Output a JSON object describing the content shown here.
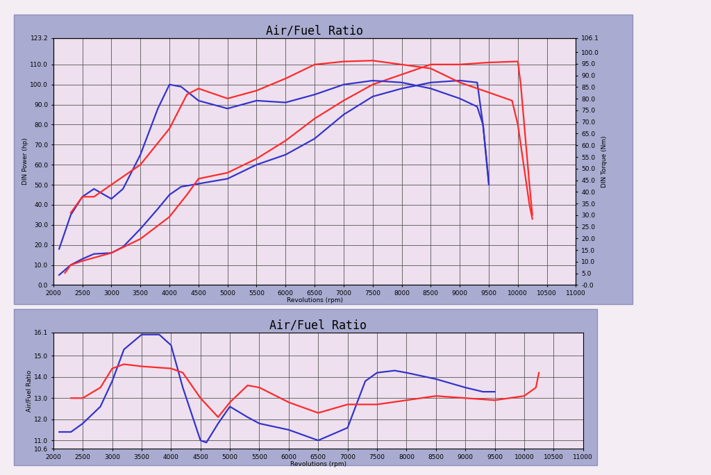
{
  "chart_data": [
    {
      "type": "line",
      "title": "Air/Fuel Ratio",
      "x_label": "Revolutions (rpm)",
      "y_label": "DIN Power (hp)",
      "y2_label": "DIN Torque (Nm)",
      "xlim": [
        2000,
        11000
      ],
      "xticks": [
        2000,
        2500,
        3000,
        3500,
        4000,
        4500,
        5000,
        5500,
        6000,
        6500,
        7000,
        7500,
        8000,
        8500,
        9000,
        9500,
        10000,
        10500,
        11000
      ],
      "ylim": [
        0,
        123.2
      ],
      "yticks": [
        {
          "value": 0,
          "label": "0.0"
        },
        {
          "value": 10,
          "label": "10.0"
        },
        {
          "value": 20,
          "label": "20.0"
        },
        {
          "value": 30,
          "label": "30.0"
        },
        {
          "value": 40,
          "label": "40.0"
        },
        {
          "value": 50,
          "label": "50.0"
        },
        {
          "value": 60,
          "label": "60.0"
        },
        {
          "value": 70,
          "label": "70.0"
        },
        {
          "value": 80,
          "label": "80.0"
        },
        {
          "value": 90,
          "label": "90.0"
        },
        {
          "value": 100,
          "label": "100.0"
        },
        {
          "value": 110,
          "label": "110.0"
        },
        123.2
      ],
      "y2lim": [
        0,
        106.1
      ],
      "y2ticks": [
        {
          "value": 0,
          "label": "-0.0"
        },
        {
          "value": 5,
          "label": "5.0"
        },
        {
          "value": 10,
          "label": "10.0"
        },
        {
          "value": 15,
          "label": "15.0"
        },
        {
          "value": 20,
          "label": "20.0"
        },
        {
          "value": 25,
          "label": "25.0"
        },
        {
          "value": 30,
          "label": "30.0"
        },
        {
          "value": 35,
          "label": "35.0"
        },
        {
          "value": 40,
          "label": "40.0"
        },
        {
          "value": 45,
          "label": "45.0"
        },
        {
          "value": 50,
          "label": "50.0"
        },
        {
          "value": 55,
          "label": "55.0"
        },
        {
          "value": 60,
          "label": "60.0"
        },
        {
          "value": 65,
          "label": "65.0"
        },
        {
          "value": 70,
          "label": "70.0"
        },
        {
          "value": 75,
          "label": "75.0"
        },
        {
          "value": 80,
          "label": "80.0"
        },
        {
          "value": 85,
          "label": "85.0"
        },
        {
          "value": 90,
          "label": "90.0"
        },
        {
          "value": 95,
          "label": "95.0"
        },
        {
          "value": 100,
          "label": "100.0"
        },
        106.1
      ],
      "grid": true,
      "series": [
        {
          "color": "#3333cc",
          "x": [
            2100,
            2300,
            2500,
            2700,
            3000,
            3200,
            3500,
            3800,
            4000,
            4200,
            4500,
            5000,
            5500,
            6000,
            6500,
            7000,
            7500,
            8000,
            8500,
            9000,
            9300,
            9400,
            9500
          ],
          "values": [
            5,
            10,
            13,
            15.5,
            16,
            19,
            28,
            38,
            45,
            49,
            50.5,
            53,
            60,
            65,
            73,
            85,
            94,
            98,
            101,
            102,
            101,
            80,
            51
          ]
        },
        {
          "color": "#ff2a2a",
          "x": [
            2200,
            2300,
            2500,
            3000,
            3500,
            4000,
            4300,
            4500,
            5000,
            5500,
            6000,
            6500,
            7000,
            7500,
            8000,
            8500,
            9000,
            9500,
            10000,
            10050,
            10200,
            10250
          ],
          "values": [
            6,
            10,
            12,
            16,
            23,
            34,
            45,
            53,
            56,
            63,
            72,
            83,
            92,
            100,
            105,
            110,
            110,
            111,
            111.5,
            100,
            50,
            35
          ]
        },
        {
          "color": "#3333cc",
          "axis": "y2",
          "x": [
            2100,
            2300,
            2500,
            2700,
            3000,
            3200,
            3500,
            3800,
            4000,
            4200,
            4500,
            5000,
            5500,
            6000,
            6500,
            7000,
            7500,
            8000,
            8500,
            9000,
            9300,
            9400,
            9500
          ],
          "values": [
            15.5,
            30.1,
            37.9,
            41.3,
            37.0,
            41.3,
            56.0,
            75.8,
            86.1,
            85.2,
            79.2,
            75.8,
            79.2,
            78.4,
            81.8,
            86.1,
            87.8,
            87.0,
            84.4,
            80.1,
            76.6,
            68.9,
            43.1
          ]
        },
        {
          "color": "#ff2a2a",
          "axis": "y2",
          "x": [
            2300,
            2500,
            2700,
            3000,
            3500,
            4000,
            4300,
            4500,
            5000,
            5500,
            6000,
            6500,
            7000,
            7500,
            8000,
            8500,
            9000,
            9500,
            9900,
            10000,
            10200,
            10250
          ],
          "values": [
            31.0,
            37.9,
            37.9,
            43.1,
            51.7,
            67.2,
            81.8,
            84.4,
            80.1,
            83.5,
            88.7,
            94.7,
            96.0,
            96.4,
            94.7,
            93.0,
            87.0,
            82.7,
            79.2,
            68.9,
            34.4,
            28.4
          ]
        }
      ]
    },
    {
      "type": "line",
      "title": "Air/Fuel Ratio",
      "x_label": "Revolutions (rpm)",
      "y_label": "Air/Fuel Ratio",
      "xlim": [
        2000,
        11000
      ],
      "xticks": [
        2000,
        2500,
        3000,
        3500,
        4000,
        4500,
        5000,
        5500,
        6000,
        6500,
        7000,
        7500,
        8000,
        8500,
        9000,
        9500,
        10000,
        10500,
        11000
      ],
      "ylim": [
        10.6,
        16.1
      ],
      "yticks": [
        10.6,
        {
          "value": 11,
          "label": "11.0"
        },
        {
          "value": 12,
          "label": "12.0"
        },
        {
          "value": 13,
          "label": "13.0"
        },
        {
          "value": 14,
          "label": "14.0"
        },
        {
          "value": 15,
          "label": "15.0"
        },
        16.1
      ],
      "grid": true,
      "series": [
        {
          "color": "#3333cc",
          "x": [
            2100,
            2300,
            2500,
            2800,
            3000,
            3200,
            3500,
            3800,
            4000,
            4200,
            4500,
            4600,
            4800,
            5000,
            5300,
            5500,
            6000,
            6500,
            7000,
            7300,
            7500,
            7800,
            8000,
            8500,
            9000,
            9300,
            9500
          ],
          "values": [
            11.4,
            11.4,
            11.8,
            12.6,
            13.8,
            15.3,
            16.0,
            16.0,
            15.5,
            13.5,
            11.0,
            10.9,
            11.8,
            12.6,
            12.1,
            11.8,
            11.5,
            11.0,
            11.6,
            13.8,
            14.2,
            14.3,
            14.2,
            13.9,
            13.5,
            13.3,
            13.3
          ]
        },
        {
          "color": "#ff2a2a",
          "x": [
            2300,
            2500,
            2800,
            3000,
            3200,
            3500,
            4000,
            4200,
            4500,
            4800,
            5000,
            5300,
            5500,
            6000,
            6500,
            7000,
            7500,
            8000,
            8500,
            9000,
            9500,
            10000,
            10200,
            10250
          ],
          "values": [
            13.0,
            13.0,
            13.5,
            14.4,
            14.6,
            14.5,
            14.4,
            14.2,
            13.0,
            12.1,
            12.8,
            13.6,
            13.5,
            12.8,
            12.3,
            12.7,
            12.7,
            12.9,
            13.1,
            13.0,
            12.9,
            13.1,
            13.5,
            14.2
          ]
        }
      ]
    }
  ]
}
